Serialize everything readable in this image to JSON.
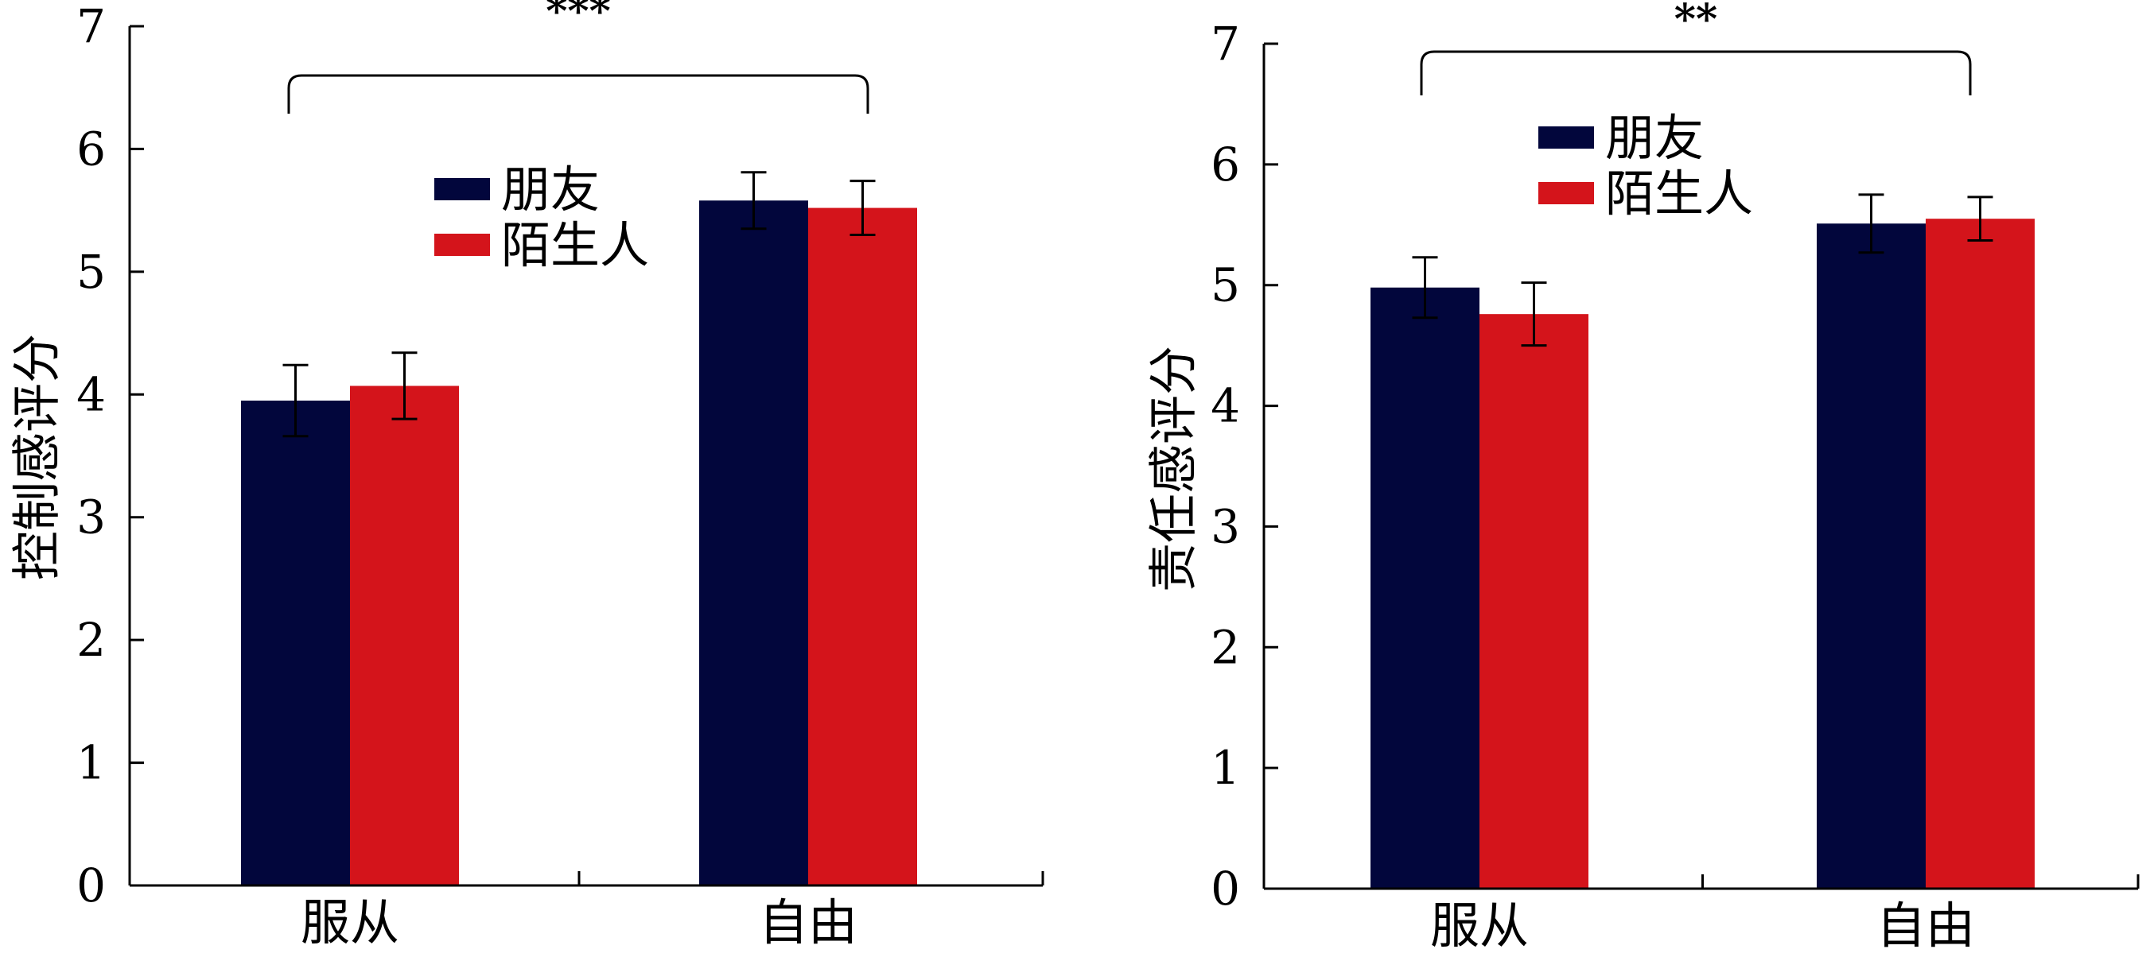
{
  "colors": {
    "friend": "#02063c",
    "stranger": "#d4141b"
  },
  "legend": {
    "items": [
      "朋友",
      "陌生人"
    ]
  },
  "chart_data": [
    {
      "type": "bar",
      "title": "",
      "xlabel": "",
      "ylabel": "控制感评分",
      "ylim": [
        0,
        7
      ],
      "yticks": [
        0,
        1,
        2,
        3,
        4,
        5,
        6,
        7
      ],
      "categories": [
        "服从",
        "自由"
      ],
      "legend_position": "top-center",
      "series": [
        {
          "name": "朋友",
          "values": [
            3.95,
            5.58
          ],
          "errors": [
            0.29,
            0.23
          ]
        },
        {
          "name": "陌生人",
          "values": [
            4.07,
            5.52
          ],
          "errors": [
            0.27,
            0.22
          ]
        }
      ],
      "annotation": {
        "text": "***",
        "between": [
          "服从",
          "自由"
        ]
      }
    },
    {
      "type": "bar",
      "title": "",
      "xlabel": "",
      "ylabel": "责任感评分",
      "ylim": [
        0,
        7
      ],
      "yticks": [
        0,
        1,
        2,
        3,
        4,
        5,
        6,
        7
      ],
      "categories": [
        "服从",
        "自由"
      ],
      "legend_position": "top-center",
      "series": [
        {
          "name": "朋友",
          "values": [
            4.98,
            5.51
          ],
          "errors": [
            0.25,
            0.24
          ]
        },
        {
          "name": "陌生人",
          "values": [
            4.76,
            5.55
          ],
          "errors": [
            0.26,
            0.18
          ]
        }
      ],
      "annotation": {
        "text": "**",
        "between": [
          "服从",
          "自由"
        ]
      }
    }
  ]
}
